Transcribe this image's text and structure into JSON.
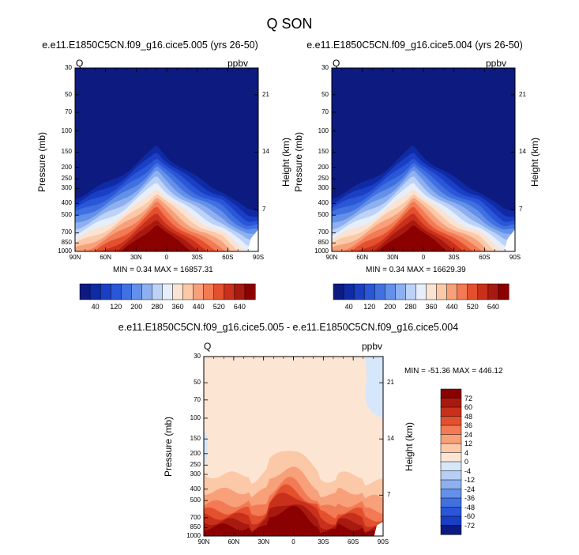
{
  "page_title": "Q SON",
  "chart_data": [
    {
      "type": "contour",
      "title": "e.e11.E1850C5CN.f09_g16.cice5.005 (yrs 26-50)",
      "variable": "Q",
      "units": "ppbv",
      "ylabel": "Pressure (mb)",
      "ylabel_right": "Height (km)",
      "x_ticks": [
        "90N",
        "60N",
        "30N",
        "0",
        "30S",
        "60S",
        "90S"
      ],
      "y_ticks": [
        "30",
        "50",
        "70",
        "100",
        "150",
        "200",
        "250",
        "300",
        "400",
        "500",
        "700",
        "850",
        "1000"
      ],
      "y_ticks_right": [
        "21",
        "14",
        "7"
      ],
      "min": 0.34,
      "max": 16857.31,
      "stats_text": "MIN =  0.34  MAX = 16857.31",
      "colorbar_labels": [
        "40",
        "120",
        "200",
        "280",
        "360",
        "440",
        "520",
        "640"
      ]
    },
    {
      "type": "contour",
      "title": "e.e11.E1850C5CN.f09_g16.cice5.004 (yrs 26-50)",
      "variable": "Q",
      "units": "ppbv",
      "ylabel": "Pressure (mb)",
      "ylabel_right": "Height (km)",
      "x_ticks": [
        "90N",
        "60N",
        "30N",
        "0",
        "30S",
        "60S",
        "90S"
      ],
      "y_ticks": [
        "30",
        "50",
        "70",
        "100",
        "150",
        "200",
        "250",
        "300",
        "400",
        "500",
        "700",
        "850",
        "1000"
      ],
      "y_ticks_right": [
        "21",
        "14",
        "7"
      ],
      "min": 0.34,
      "max": 16629.39,
      "stats_text": "MIN =  0.34  MAX = 16629.39",
      "colorbar_labels": [
        "40",
        "120",
        "200",
        "280",
        "360",
        "440",
        "520",
        "640"
      ]
    },
    {
      "type": "contour",
      "title": "e.e11.E1850C5CN.f09_g16.cice5.005 - e.e11.E1850C5CN.f09_g16.cice5.004",
      "variable": "Q",
      "units": "ppbv",
      "ylabel": "Pressure (mb)",
      "ylabel_right": "Height (km)",
      "x_ticks": [
        "90N",
        "60N",
        "30N",
        "0",
        "30S",
        "60S",
        "90S"
      ],
      "y_ticks": [
        "30",
        "50",
        "70",
        "100",
        "150",
        "200",
        "250",
        "300",
        "400",
        "500",
        "700",
        "850",
        "1000"
      ],
      "y_ticks_right": [
        "21",
        "14",
        "7"
      ],
      "min": -51.36,
      "max": 446.12,
      "stats_text": "MIN = -51.36  MAX = 446.12",
      "colorbar_labels": [
        "72",
        "60",
        "48",
        "36",
        "24",
        "12",
        "4",
        "0",
        "-4",
        "-12",
        "-24",
        "-36",
        "-48",
        "-60",
        "-72"
      ]
    }
  ],
  "colors": {
    "abs_scale": [
      "#0d1a80",
      "#0f2aa5",
      "#1a3fc4",
      "#2a56d8",
      "#4170e0",
      "#6390e8",
      "#8eb0f0",
      "#bcd2f7",
      "#e6eefc",
      "#fbe3d2",
      "#fbc8a8",
      "#f7a07a",
      "#f27a54",
      "#e4502e",
      "#c9301b",
      "#a81a10",
      "#8b0000"
    ],
    "diff_scale": [
      "#8b0000",
      "#a81a10",
      "#c9301b",
      "#e4502e",
      "#f27a54",
      "#f7a07a",
      "#fbc8a8",
      "#fde5d3",
      "#d6e6fb",
      "#b7cff5",
      "#8eb0f0",
      "#6390e8",
      "#4170e0",
      "#2a56d8",
      "#1a3fc4",
      "#0d1a80"
    ]
  }
}
